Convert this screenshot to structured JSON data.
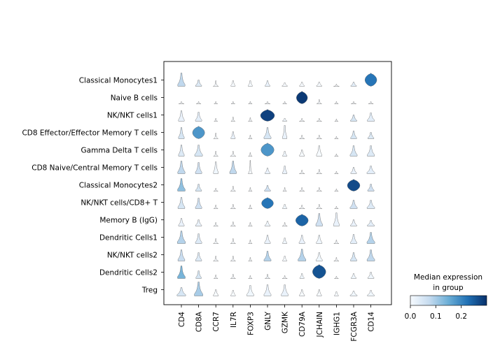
{
  "chart_data": {
    "type": "stacked-violin",
    "title": "",
    "genes": [
      "CD4",
      "CD8A",
      "CCR7",
      "IL7R",
      "FOXP3",
      "GNLY",
      "GZMK",
      "CD79A",
      "JCHAIN",
      "IGHG1",
      "FCGR3A",
      "CD14"
    ],
    "groups": [
      "Classical Monocytes1",
      "Naive B cells",
      "NK/NKT cells1",
      "CD8 Effector/Effector Memory T cells",
      "Gamma Delta T cells",
      "CD8 Naive/Central Memory T cells",
      "Classical Monocytes2",
      "NK/NKT cells/CD8+ T",
      "Memory B (IgG)",
      "Dendritic Cells1",
      "NK/NKT cells2",
      "Dendritic Cells2",
      "Treg"
    ],
    "median_expression": [
      [
        0.08,
        0.04,
        0.0,
        0.0,
        0.0,
        0.02,
        0.0,
        0.0,
        0.0,
        0.0,
        0.03,
        0.22
      ],
      [
        0.0,
        0.0,
        0.0,
        0.0,
        0.0,
        0.0,
        0.0,
        0.29,
        0.0,
        0.0,
        0.0,
        0.0
      ],
      [
        0.02,
        0.03,
        0.0,
        0.0,
        0.0,
        0.28,
        0.01,
        0.0,
        0.0,
        0.0,
        0.05,
        0.03
      ],
      [
        0.05,
        0.18,
        0.0,
        0.02,
        0.0,
        0.05,
        0.02,
        0.0,
        0.0,
        0.0,
        0.05,
        0.04
      ],
      [
        0.04,
        0.05,
        0.0,
        0.0,
        0.0,
        0.18,
        0.01,
        0.0,
        0.0,
        0.0,
        0.05,
        0.04
      ],
      [
        0.08,
        0.06,
        0.01,
        0.08,
        0.0,
        0.02,
        0.02,
        0.0,
        0.0,
        0.0,
        0.02,
        0.03
      ],
      [
        0.12,
        0.05,
        0.0,
        0.0,
        0.0,
        0.06,
        0.0,
        0.0,
        0.0,
        0.0,
        0.27,
        0.06
      ],
      [
        0.05,
        0.06,
        0.0,
        0.0,
        0.0,
        0.22,
        0.01,
        0.0,
        0.0,
        0.0,
        0.06,
        0.04
      ],
      [
        0.02,
        0.02,
        0.0,
        0.0,
        0.0,
        0.01,
        0.0,
        0.24,
        0.06,
        0.02,
        0.02,
        0.03
      ],
      [
        0.09,
        0.04,
        0.0,
        0.0,
        0.0,
        0.02,
        0.01,
        0.02,
        0.01,
        0.0,
        0.03,
        0.09
      ],
      [
        0.07,
        0.04,
        0.0,
        0.0,
        0.0,
        0.09,
        0.0,
        0.09,
        0.01,
        0.0,
        0.05,
        0.08
      ],
      [
        0.14,
        0.05,
        0.0,
        0.0,
        0.0,
        0.01,
        0.0,
        0.01,
        0.26,
        0.0,
        0.01,
        0.01
      ],
      [
        0.05,
        0.1,
        0.0,
        0.0,
        0.01,
        0.02,
        0.02,
        0.0,
        0.0,
        0.0,
        0.01,
        0.01
      ]
    ],
    "violin_width": [
      [
        0.72,
        0.6,
        0.32,
        0.4,
        0.4,
        0.48,
        0.52,
        0.48,
        0.52,
        0.34,
        0.56,
        0.8
      ],
      [
        0.32,
        0.28,
        0.2,
        0.22,
        0.22,
        0.32,
        0.24,
        0.75,
        0.3,
        0.22,
        0.3,
        0.3
      ],
      [
        0.56,
        0.62,
        0.2,
        0.24,
        0.24,
        0.95,
        0.42,
        0.32,
        0.3,
        0.2,
        0.62,
        0.72
      ],
      [
        0.55,
        0.82,
        0.28,
        0.4,
        0.22,
        0.7,
        0.4,
        0.3,
        0.3,
        0.22,
        0.58,
        0.58
      ],
      [
        0.55,
        0.78,
        0.28,
        0.34,
        0.22,
        0.88,
        0.42,
        0.48,
        0.52,
        0.22,
        0.7,
        0.72
      ],
      [
        0.72,
        0.62,
        0.45,
        0.65,
        0.25,
        0.5,
        0.42,
        0.32,
        0.32,
        0.22,
        0.56,
        0.8
      ],
      [
        0.75,
        0.58,
        0.26,
        0.3,
        0.22,
        0.6,
        0.22,
        0.3,
        0.3,
        0.22,
        0.85,
        0.62
      ],
      [
        0.68,
        0.62,
        0.25,
        0.3,
        0.22,
        0.8,
        0.42,
        0.34,
        0.34,
        0.22,
        0.72,
        0.76
      ],
      [
        0.55,
        0.6,
        0.28,
        0.3,
        0.24,
        0.52,
        0.3,
        0.85,
        0.65,
        0.55,
        0.62,
        0.72
      ],
      [
        0.8,
        0.62,
        0.3,
        0.3,
        0.22,
        0.56,
        0.4,
        0.56,
        0.55,
        0.3,
        0.62,
        0.78
      ],
      [
        0.68,
        0.6,
        0.3,
        0.3,
        0.22,
        0.7,
        0.4,
        0.78,
        0.62,
        0.3,
        0.62,
        0.76
      ],
      [
        0.76,
        0.52,
        0.24,
        0.3,
        0.22,
        0.3,
        0.3,
        0.4,
        0.9,
        0.24,
        0.5,
        0.6
      ],
      [
        0.88,
        0.85,
        0.48,
        0.45,
        0.7,
        0.7,
        0.68,
        0.5,
        0.45,
        0.38,
        0.7,
        0.7
      ]
    ],
    "violin_height": [
      [
        0.95,
        0.45,
        0.4,
        0.4,
        0.4,
        0.4,
        0.25,
        0.3,
        0.3,
        0.15,
        0.3,
        0.95
      ],
      [
        0.15,
        0.15,
        0.15,
        0.15,
        0.15,
        0.15,
        0.15,
        0.9,
        0.3,
        0.15,
        0.15,
        0.15
      ],
      [
        0.75,
        0.65,
        0.2,
        0.3,
        0.25,
        0.85,
        0.2,
        0.2,
        0.2,
        0.15,
        0.45,
        0.6
      ],
      [
        0.8,
        0.9,
        0.4,
        0.5,
        0.25,
        0.8,
        0.95,
        0.25,
        0.25,
        0.15,
        0.55,
        0.45
      ],
      [
        0.8,
        0.8,
        0.35,
        0.35,
        0.25,
        0.95,
        0.35,
        0.45,
        0.75,
        0.15,
        0.75,
        0.75
      ],
      [
        0.9,
        0.8,
        0.85,
        0.9,
        0.95,
        0.4,
        0.55,
        0.25,
        0.3,
        0.15,
        0.45,
        0.55
      ],
      [
        0.9,
        0.5,
        0.2,
        0.35,
        0.25,
        0.4,
        0.25,
        0.25,
        0.25,
        0.15,
        0.85,
        0.5
      ],
      [
        0.8,
        0.75,
        0.25,
        0.3,
        0.25,
        0.8,
        0.3,
        0.25,
        0.3,
        0.15,
        0.6,
        0.6
      ],
      [
        0.55,
        0.45,
        0.25,
        0.3,
        0.25,
        0.35,
        0.25,
        0.85,
        0.9,
        0.95,
        0.45,
        0.4
      ],
      [
        0.9,
        0.7,
        0.35,
        0.35,
        0.25,
        0.6,
        0.4,
        0.6,
        0.6,
        0.25,
        0.65,
        0.8
      ],
      [
        0.8,
        0.6,
        0.35,
        0.35,
        0.25,
        0.7,
        0.35,
        0.85,
        0.6,
        0.25,
        0.6,
        0.8
      ],
      [
        0.9,
        0.55,
        0.25,
        0.3,
        0.2,
        0.3,
        0.2,
        0.35,
        1.0,
        0.15,
        0.35,
        0.45
      ],
      [
        0.6,
        1.0,
        0.45,
        0.4,
        0.75,
        0.8,
        0.8,
        0.45,
        0.45,
        0.3,
        0.35,
        0.4
      ]
    ],
    "colorbar": {
      "title_line1": "Median expression",
      "title_line2": "in group",
      "range": [
        0,
        0.3
      ],
      "ticks": [
        0.0,
        0.1,
        0.2
      ],
      "tick_labels": [
        "0.0",
        "0.1",
        "0.2"
      ],
      "colors": [
        "#f7fbff",
        "#c6dbef",
        "#6baed6",
        "#2171b5",
        "#08306b"
      ]
    },
    "xlabel": "",
    "ylabel": ""
  }
}
